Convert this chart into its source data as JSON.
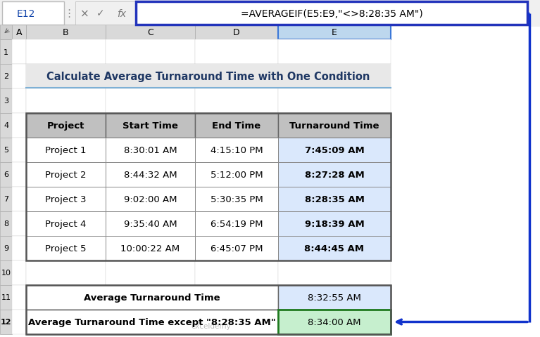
{
  "title": "Calculate Average Turnaround Time with One Condition",
  "formula_bar_cell": "E12",
  "formula_bar_text": "=AVERAGEIF(E5:E9,\"<>8:28:35 AM\")",
  "table_headers": [
    "Project",
    "Start Time",
    "End Time",
    "Turnaround Time"
  ],
  "table_rows": [
    [
      "Project 1",
      "8:30:01 AM",
      "4:15:10 PM",
      "7:45:09 AM"
    ],
    [
      "Project 2",
      "8:44:32 AM",
      "5:12:00 PM",
      "8:27:28 AM"
    ],
    [
      "Project 3",
      "9:02:00 AM",
      "5:30:35 PM",
      "8:28:35 AM"
    ],
    [
      "Project 4",
      "9:35:40 AM",
      "6:54:19 PM",
      "9:18:39 AM"
    ],
    [
      "Project 5",
      "10:00:22 AM",
      "6:45:07 PM",
      "8:44:45 AM"
    ]
  ],
  "summary_rows": [
    [
      "Average Turnaround Time",
      "8:32:55 AM"
    ],
    [
      "Average Turnaround Time except \"8:28:35 AM\"",
      "8:34:00 AM"
    ]
  ],
  "turnaround_bg": "#DAE8FC",
  "title_bg": "#E8E8E8",
  "title_fg": "#1F3864",
  "formula_bar_border": "#2233BB",
  "col_header_bg": "#D9D9D9",
  "header_row_bg": "#C0C0C0",
  "arrow_color": "#1133CC",
  "row12_value_bg": "#C6EFCE",
  "row12_border_color": "#1F7A1F",
  "col_e_header_bg": "#BDD7EE",
  "watermark_color": "#BBBBBB",
  "summary11_value_bg": "#DAE8FC"
}
